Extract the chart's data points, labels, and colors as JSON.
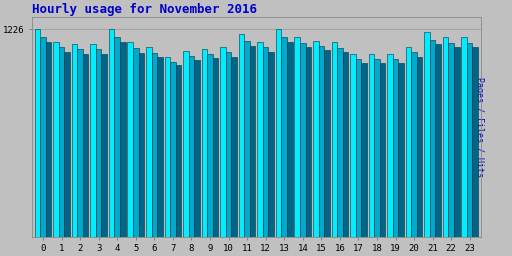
{
  "title": "Hourly usage for November 2016",
  "title_color": "#0000cc",
  "title_fontsize": 9,
  "ylabel": "Pages / Files / Hits",
  "ylabel_color": "#0000cc",
  "hours": [
    0,
    1,
    2,
    3,
    4,
    5,
    6,
    7,
    8,
    9,
    10,
    11,
    12,
    13,
    14,
    15,
    16,
    17,
    18,
    19,
    20,
    21,
    22,
    23
  ],
  "pages": [
    1226,
    1150,
    1140,
    1140,
    1226,
    1150,
    1120,
    1060,
    1100,
    1110,
    1120,
    1200,
    1150,
    1226,
    1180,
    1160,
    1150,
    1080,
    1080,
    1080,
    1120,
    1210,
    1180,
    1180
  ],
  "files": [
    1180,
    1120,
    1110,
    1110,
    1180,
    1115,
    1085,
    1035,
    1070,
    1080,
    1090,
    1155,
    1120,
    1180,
    1145,
    1130,
    1115,
    1050,
    1050,
    1050,
    1090,
    1165,
    1145,
    1145
  ],
  "hits": [
    1150,
    1090,
    1080,
    1080,
    1150,
    1085,
    1060,
    1015,
    1048,
    1058,
    1065,
    1130,
    1095,
    1150,
    1120,
    1105,
    1090,
    1025,
    1025,
    1025,
    1065,
    1140,
    1120,
    1120
  ],
  "bar_color_pages": "#00eeff",
  "bar_color_files": "#00aacc",
  "bar_color_hits": "#006688",
  "bar_edge_color": "#003344",
  "bg_color": "#c0c0c0",
  "plot_bg_color": "#c0c0c0",
  "ylim_min": 0,
  "ylim_max": 1300,
  "ytick_val": 1226
}
